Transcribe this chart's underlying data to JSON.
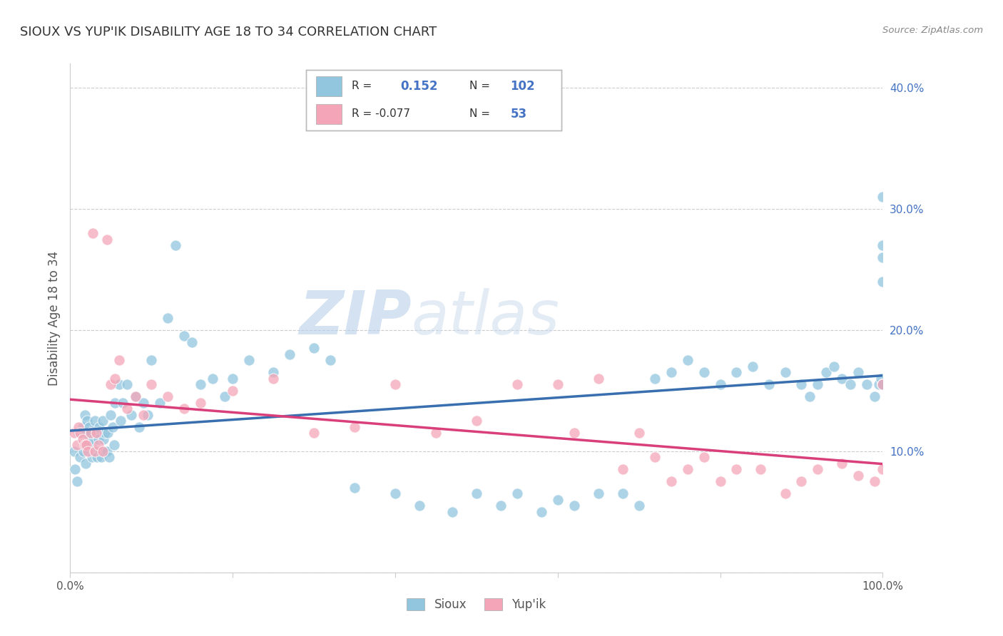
{
  "title": "SIOUX VS YUP'IK DISABILITY AGE 18 TO 34 CORRELATION CHART",
  "source": "Source: ZipAtlas.com",
  "ylabel": "Disability Age 18 to 34",
  "xlim": [
    0.0,
    1.0
  ],
  "ylim": [
    0.0,
    0.42
  ],
  "xticks": [
    0.0,
    0.2,
    0.4,
    0.6,
    0.8,
    1.0
  ],
  "xtick_labels": [
    "0.0%",
    "",
    "",
    "",
    "",
    "100.0%"
  ],
  "yticks": [
    0.0,
    0.1,
    0.2,
    0.3,
    0.4
  ],
  "ytick_labels": [
    "",
    "10.0%",
    "20.0%",
    "30.0%",
    "40.0%"
  ],
  "sioux_color": "#92c5de",
  "yupik_color": "#f4a6b8",
  "sioux_line_color": "#3a6faf",
  "yupik_line_color": "#d93f7a",
  "background_color": "#ffffff",
  "grid_color": "#cccccc",
  "watermark_zip": "ZIP",
  "watermark_atlas": "atlas",
  "title_color": "#333333",
  "title_fontsize": 13,
  "legend_r1": "R =",
  "legend_v1": "0.152",
  "legend_n1": "N =",
  "legend_nv1": "102",
  "legend_r2": "R = -0.077",
  "legend_v2": "-0.077",
  "legend_n2": "N =",
  "legend_nv2": "53",
  "sioux_x": [
    0.005,
    0.006,
    0.008,
    0.01,
    0.012,
    0.015,
    0.016,
    0.017,
    0.018,
    0.019,
    0.02,
    0.021,
    0.022,
    0.023,
    0.025,
    0.026,
    0.027,
    0.028,
    0.03,
    0.031,
    0.032,
    0.033,
    0.035,
    0.036,
    0.037,
    0.038,
    0.04,
    0.041,
    0.042,
    0.043,
    0.045,
    0.046,
    0.048,
    0.05,
    0.052,
    0.054,
    0.055,
    0.06,
    0.062,
    0.065,
    0.07,
    0.075,
    0.08,
    0.085,
    0.09,
    0.095,
    0.1,
    0.11,
    0.12,
    0.13,
    0.14,
    0.15,
    0.16,
    0.175,
    0.19,
    0.2,
    0.22,
    0.25,
    0.27,
    0.3,
    0.32,
    0.35,
    0.4,
    0.43,
    0.47,
    0.5,
    0.53,
    0.55,
    0.58,
    0.6,
    0.62,
    0.65,
    0.68,
    0.7,
    0.72,
    0.74,
    0.76,
    0.78,
    0.8,
    0.82,
    0.84,
    0.86,
    0.88,
    0.9,
    0.91,
    0.92,
    0.93,
    0.94,
    0.95,
    0.96,
    0.97,
    0.98,
    0.99,
    0.995,
    0.998,
    1.0,
    1.0,
    1.0,
    1.0,
    1.0,
    1.0,
    1.0
  ],
  "sioux_y": [
    0.1,
    0.085,
    0.075,
    0.115,
    0.095,
    0.12,
    0.1,
    0.115,
    0.13,
    0.09,
    0.115,
    0.125,
    0.105,
    0.12,
    0.115,
    0.105,
    0.095,
    0.11,
    0.125,
    0.1,
    0.115,
    0.095,
    0.11,
    0.12,
    0.1,
    0.095,
    0.125,
    0.11,
    0.1,
    0.115,
    0.1,
    0.115,
    0.095,
    0.13,
    0.12,
    0.105,
    0.14,
    0.155,
    0.125,
    0.14,
    0.155,
    0.13,
    0.145,
    0.12,
    0.14,
    0.13,
    0.175,
    0.14,
    0.21,
    0.27,
    0.195,
    0.19,
    0.155,
    0.16,
    0.145,
    0.16,
    0.175,
    0.165,
    0.18,
    0.185,
    0.175,
    0.07,
    0.065,
    0.055,
    0.05,
    0.065,
    0.055,
    0.065,
    0.05,
    0.06,
    0.055,
    0.065,
    0.065,
    0.055,
    0.16,
    0.165,
    0.175,
    0.165,
    0.155,
    0.165,
    0.17,
    0.155,
    0.165,
    0.155,
    0.145,
    0.155,
    0.165,
    0.17,
    0.16,
    0.155,
    0.165,
    0.155,
    0.145,
    0.155,
    0.16,
    0.155,
    0.26,
    0.24,
    0.27,
    0.155,
    0.155,
    0.31
  ],
  "yupik_x": [
    0.005,
    0.008,
    0.01,
    0.012,
    0.015,
    0.018,
    0.02,
    0.022,
    0.025,
    0.028,
    0.03,
    0.032,
    0.035,
    0.04,
    0.045,
    0.05,
    0.055,
    0.06,
    0.07,
    0.08,
    0.09,
    0.1,
    0.12,
    0.14,
    0.16,
    0.2,
    0.25,
    0.3,
    0.35,
    0.4,
    0.45,
    0.5,
    0.55,
    0.6,
    0.62,
    0.65,
    0.68,
    0.7,
    0.72,
    0.74,
    0.76,
    0.78,
    0.8,
    0.82,
    0.85,
    0.88,
    0.9,
    0.92,
    0.95,
    0.97,
    0.99,
    1.0,
    1.0
  ],
  "yupik_y": [
    0.115,
    0.105,
    0.12,
    0.115,
    0.11,
    0.105,
    0.105,
    0.1,
    0.115,
    0.28,
    0.1,
    0.115,
    0.105,
    0.1,
    0.275,
    0.155,
    0.16,
    0.175,
    0.135,
    0.145,
    0.13,
    0.155,
    0.145,
    0.135,
    0.14,
    0.15,
    0.16,
    0.115,
    0.12,
    0.155,
    0.115,
    0.125,
    0.155,
    0.155,
    0.115,
    0.16,
    0.085,
    0.115,
    0.095,
    0.075,
    0.085,
    0.095,
    0.075,
    0.085,
    0.085,
    0.065,
    0.075,
    0.085,
    0.09,
    0.08,
    0.075,
    0.085,
    0.155
  ]
}
